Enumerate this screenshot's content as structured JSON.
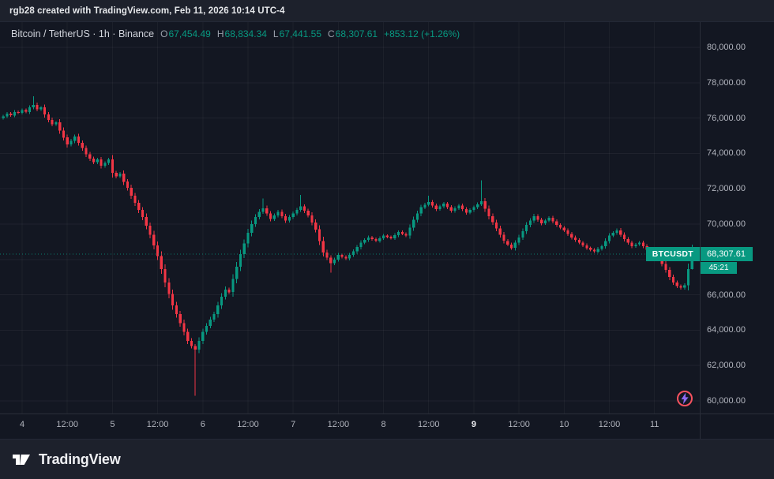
{
  "attribution": {
    "text": "rgb28 created with TradingView.com, Feb 11, 2026 10:14 UTC-4"
  },
  "legend": {
    "title": "Bitcoin / TetherUS · 1h · Binance",
    "ohlc": [
      {
        "label": "O",
        "value": "67,454.49"
      },
      {
        "label": "H",
        "value": "68,834.34"
      },
      {
        "label": "L",
        "value": "67,441.55"
      },
      {
        "label": "C",
        "value": "68,307.61"
      }
    ],
    "change": "+853.12 (+1.26%)"
  },
  "price_label": {
    "symbol": "BTCUSDT",
    "price": "68,307.61",
    "countdown": "45:21"
  },
  "branding": {
    "wordmark": "TradingView"
  },
  "colors": {
    "up": "#089981",
    "down": "#f23645",
    "background": "#131722",
    "panel_background": "#1d212c",
    "axis_text": "#b2b5be",
    "title_text": "#d1d4dc",
    "badge_text": "#ffffff",
    "spark_ring": "#f7525f",
    "spark_bolt": "#8d69f2"
  },
  "chart_data": {
    "type": "candlestick",
    "symbol": "BTCUSDT",
    "name": "Bitcoin / TetherUS",
    "exchange": "Binance",
    "interval": "1h",
    "current_price": 68307.61,
    "last_bar": {
      "open": 67454.49,
      "high": 68834.34,
      "low": 67441.55,
      "close": 68307.61,
      "change": 853.12,
      "change_pct": 1.26
    },
    "price_range_visible": [
      60000,
      80000
    ],
    "grid": true,
    "y_ticks": [
      {
        "label": "80,000.00",
        "price": 80000
      },
      {
        "label": "78,000.00",
        "price": 78000
      },
      {
        "label": "76,000.00",
        "price": 76000
      },
      {
        "label": "74,000.00",
        "price": 74000
      },
      {
        "label": "72,000.00",
        "price": 72000
      },
      {
        "label": "70,000.00",
        "price": 70000
      },
      {
        "label": "68,000.00",
        "price": 68000
      },
      {
        "label": "66,000.00",
        "price": 66000
      },
      {
        "label": "64,000.00",
        "price": 64000
      },
      {
        "label": "62,000.00",
        "price": 62000
      },
      {
        "label": "60,000.00",
        "price": 60000
      }
    ],
    "x_labels": [
      {
        "text": "4",
        "hours": 0
      },
      {
        "text": "12:00",
        "hours": 12
      },
      {
        "text": "5",
        "hours": 24
      },
      {
        "text": "12:00",
        "hours": 36
      },
      {
        "text": "6",
        "hours": 48
      },
      {
        "text": "12:00",
        "hours": 60
      },
      {
        "text": "7",
        "hours": 72
      },
      {
        "text": "12:00",
        "hours": 84
      },
      {
        "text": "8",
        "hours": 96
      },
      {
        "text": "12:00",
        "hours": 108
      },
      {
        "text": "9",
        "hours": 120,
        "bold": true
      },
      {
        "text": "12:00",
        "hours": 132
      },
      {
        "text": "10",
        "hours": 144
      },
      {
        "text": "12:00",
        "hours": 156
      },
      {
        "text": "11",
        "hours": 168
      }
    ],
    "first_open": 76000,
    "closes": [
      76100,
      76250,
      76150,
      76350,
      76300,
      76450,
      76350,
      76600,
      76750,
      76500,
      76600,
      76200,
      75900,
      75650,
      75750,
      75300,
      74900,
      74500,
      74700,
      74950,
      74600,
      74300,
      73950,
      73700,
      73500,
      73650,
      73300,
      73450,
      73650,
      72900,
      72700,
      72850,
      72400,
      72050,
      71600,
      71200,
      70800,
      70400,
      69900,
      69400,
      68800,
      68200,
      67450,
      66700,
      66050,
      65400,
      64900,
      64400,
      63900,
      63400,
      63100,
      62900,
      63400,
      63900,
      64250,
      64600,
      64900,
      65400,
      65900,
      66300,
      66150,
      66900,
      67600,
      68300,
      68900,
      69500,
      70000,
      70400,
      70700,
      70900,
      70600,
      70300,
      70500,
      70700,
      70450,
      70200,
      70400,
      70600,
      70800,
      71000,
      70750,
      70500,
      70100,
      69700,
      69050,
      68400,
      68100,
      67800,
      68000,
      68250,
      68150,
      68050,
      68250,
      68450,
      68700,
      68950,
      69100,
      69250,
      69150,
      69050,
      69200,
      69350,
      69275,
      69200,
      69375,
      69550,
      69450,
      69350,
      69800,
      70250,
      70600,
      70950,
      71100,
      71250,
      71050,
      70850,
      71000,
      71150,
      70950,
      70750,
      70900,
      71050,
      70850,
      70650,
      70800,
      70950,
      71125,
      71300,
      70875,
      70450,
      70100,
      69750,
      69400,
      69050,
      68850,
      68650,
      68950,
      69250,
      69600,
      69950,
      70200,
      70450,
      70250,
      70050,
      70200,
      70350,
      70150,
      69950,
      69800,
      69650,
      69450,
      69250,
      69100,
      68950,
      68800,
      68650,
      68550,
      68450,
      68600,
      68750,
      69050,
      69350,
      69500,
      69650,
      69400,
      69150,
      68950,
      68750,
      68850,
      68950,
      68750,
      68550,
      68450,
      68350,
      68050,
      67750,
      67400,
      67000,
      66700,
      66500,
      66400,
      66550,
      67454.49,
      68307.61
    ],
    "wick_overrides": {
      "8": {
        "high": 77234
      },
      "51": {
        "low": 60300
      },
      "69": {
        "high": 71450
      },
      "79": {
        "high": 71650
      },
      "87": {
        "low": 67250
      },
      "113": {
        "high": 71600
      },
      "127": {
        "high": 72480
      },
      "180": {
        "low": 66300
      }
    }
  }
}
